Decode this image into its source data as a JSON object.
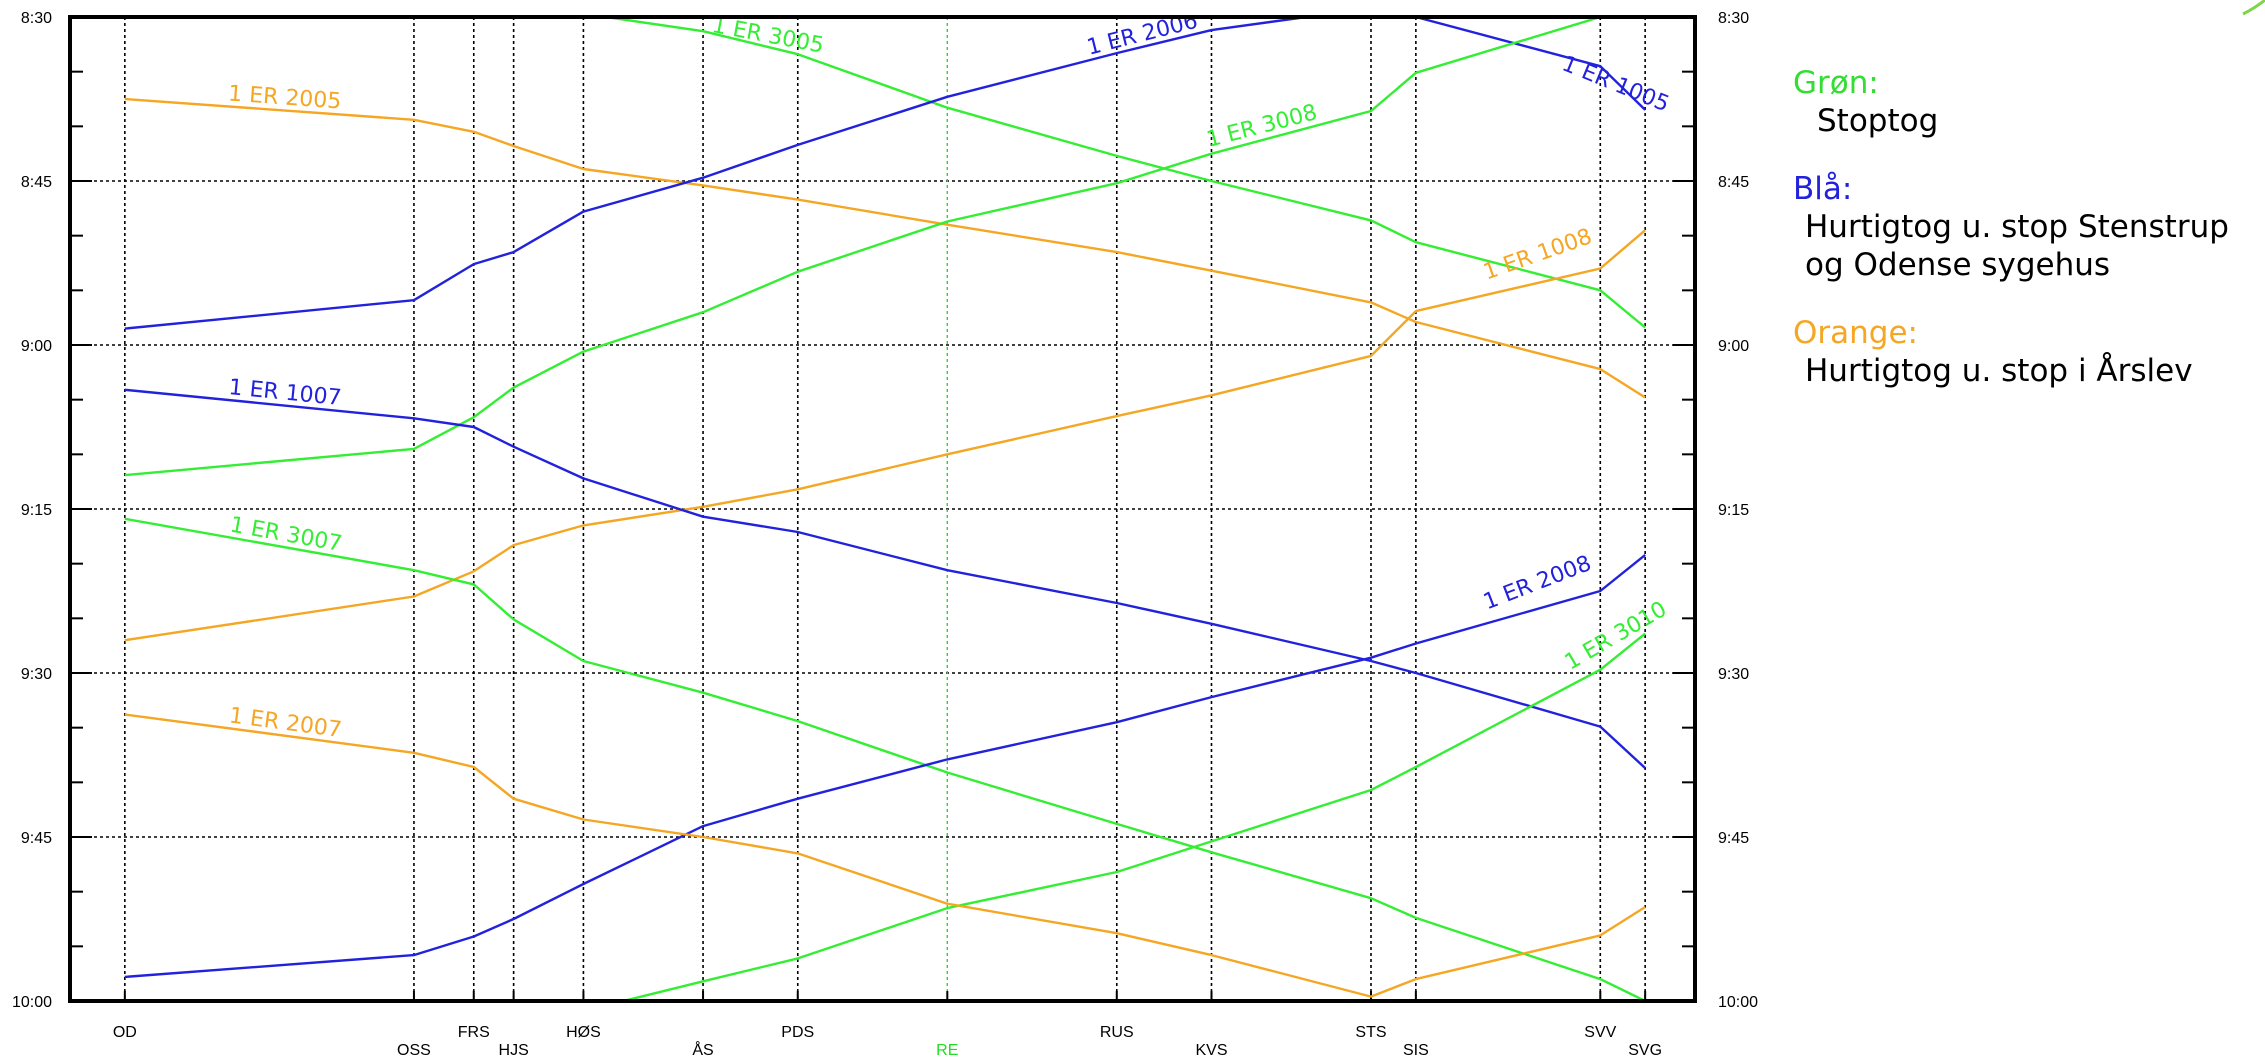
{
  "chart_data": {
    "type": "line",
    "title": "",
    "xlabel": "",
    "ylabel": "",
    "grid": true,
    "y_axis": {
      "range": [
        "8:30",
        "10:00"
      ],
      "ticks": [
        "8:30",
        "8:45",
        "9:00",
        "9:15",
        "9:30",
        "9:45",
        "10:00"
      ],
      "minor_step_minutes": 5
    },
    "stations": [
      {
        "code": "OD",
        "km": 0.0
      },
      {
        "code": "OSS",
        "km": 5.8
      },
      {
        "code": "FRS",
        "km": 7.0
      },
      {
        "code": "HJS",
        "km": 7.8
      },
      {
        "code": "HØS",
        "km": 9.2
      },
      {
        "code": "ÅS",
        "km": 11.6
      },
      {
        "code": "PDS",
        "km": 13.5
      },
      {
        "code": "RE",
        "km": 16.5
      },
      {
        "code": "RUS",
        "km": 19.9
      },
      {
        "code": "KVS",
        "km": 21.8
      },
      {
        "code": "STS",
        "km": 25.0
      },
      {
        "code": "SIS",
        "km": 25.9
      },
      {
        "code": "SVV",
        "km": 29.6
      },
      {
        "code": "SVG",
        "km": 30.5
      }
    ],
    "highlighted_station": "RE",
    "series": [
      {
        "name": "1 ER 2005",
        "color": "#f5a623",
        "points": [
          [
            0,
            "8:37.5"
          ],
          [
            5.8,
            "8:39.4"
          ],
          [
            7.0,
            "8:40.5"
          ],
          [
            7.8,
            "8:41.8"
          ],
          [
            9.2,
            "8:43.9"
          ],
          [
            11.6,
            "8:45.4"
          ],
          [
            13.5,
            "8:46.7"
          ],
          [
            16.5,
            "8:49.0"
          ],
          [
            19.9,
            "8:51.5"
          ],
          [
            21.8,
            "8:53.2"
          ],
          [
            25.0,
            "8:56.1"
          ],
          [
            25.9,
            "8:57.9"
          ],
          [
            29.6,
            "9:02.2"
          ],
          [
            30.5,
            "9:04.8"
          ]
        ]
      },
      {
        "name": "1 ER 3005",
        "color": "#33ee33",
        "points": [
          [
            9.2,
            "8:29.7"
          ],
          [
            11.6,
            "8:31.3"
          ],
          [
            13.5,
            "8:33.4"
          ],
          [
            16.5,
            "8:38.3"
          ],
          [
            19.9,
            "8:42.7"
          ],
          [
            21.8,
            "8:45.0"
          ],
          [
            25.0,
            "8:48.6"
          ],
          [
            25.9,
            "8:50.6"
          ],
          [
            29.6,
            "8:55.0"
          ],
          [
            30.5,
            "8:58.4"
          ]
        ]
      },
      {
        "name": "1 ER 2006",
        "color": "#2222dd",
        "points": [
          [
            0,
            "8:58.5"
          ],
          [
            5.8,
            "8:55.9"
          ],
          [
            7.0,
            "8:52.6"
          ],
          [
            7.8,
            "8:51.5"
          ],
          [
            9.2,
            "8:47.8"
          ],
          [
            11.6,
            "8:44.7"
          ],
          [
            13.5,
            "8:41.7"
          ],
          [
            16.5,
            "8:37.3"
          ],
          [
            19.9,
            "8:33.3"
          ],
          [
            21.8,
            "8:31.2"
          ],
          [
            23.7,
            "8:30.0"
          ]
        ]
      },
      {
        "name": "1 ER 1005",
        "color": "#2222dd",
        "points": [
          [
            25.9,
            "8:30.0"
          ],
          [
            29.6,
            "8:34.5"
          ],
          [
            30.5,
            "8:38.5"
          ]
        ]
      },
      {
        "name": "1 ER 3008",
        "color": "#33ee33",
        "points": [
          [
            0,
            "9:11.9"
          ],
          [
            5.8,
            "9:09.5"
          ],
          [
            7.0,
            "9:06.6"
          ],
          [
            7.8,
            "9:03.9"
          ],
          [
            9.2,
            "9:00.6"
          ],
          [
            11.6,
            "8:57.0"
          ],
          [
            13.5,
            "8:53.3"
          ],
          [
            16.5,
            "8:48.7"
          ],
          [
            19.9,
            "8:45.2"
          ],
          [
            21.8,
            "8:42.5"
          ],
          [
            25.0,
            "8:38.6"
          ],
          [
            25.9,
            "8:35.1"
          ],
          [
            29.6,
            "8:30.0"
          ]
        ]
      },
      {
        "name": "1 ER 1008",
        "color": "#f5a623",
        "points": [
          [
            0,
            "9:27.0"
          ],
          [
            5.8,
            "9:23.0"
          ],
          [
            7.0,
            "9:20.7"
          ],
          [
            7.8,
            "9:18.3"
          ],
          [
            9.2,
            "9:16.5"
          ],
          [
            11.6,
            "9:14.8"
          ],
          [
            13.5,
            "9:13.2"
          ],
          [
            16.5,
            "9:10.0"
          ],
          [
            19.9,
            "9:06.5"
          ],
          [
            21.8,
            "9:04.6"
          ],
          [
            25.0,
            "9:01.0"
          ],
          [
            25.9,
            "8:56.9"
          ],
          [
            29.6,
            "8:53.0"
          ],
          [
            30.5,
            "8:49.5"
          ]
        ]
      },
      {
        "name": "1 ER 1007",
        "color": "#2222dd",
        "points": [
          [
            0,
            "9:04.1"
          ],
          [
            5.8,
            "9:06.7"
          ],
          [
            7.0,
            "9:07.5"
          ],
          [
            7.8,
            "9:09.3"
          ],
          [
            9.2,
            "9:12.2"
          ],
          [
            11.6,
            "9:15.7"
          ],
          [
            13.5,
            "9:17.1"
          ],
          [
            16.5,
            "9:20.6"
          ],
          [
            19.9,
            "9:23.6"
          ],
          [
            21.8,
            "9:25.5"
          ],
          [
            25.0,
            "9:28.9"
          ],
          [
            25.9,
            "9:30.0"
          ],
          [
            29.6,
            "9:34.9"
          ],
          [
            30.5,
            "9:38.7"
          ]
        ]
      },
      {
        "name": "1 ER 3007",
        "color": "#33ee33",
        "points": [
          [
            0,
            "9:15.9"
          ],
          [
            5.8,
            "9:20.6"
          ],
          [
            7.0,
            "9:21.9"
          ],
          [
            7.8,
            "9:25.1"
          ],
          [
            9.2,
            "9:28.9"
          ],
          [
            11.6,
            "9:31.8"
          ],
          [
            13.5,
            "9:34.4"
          ],
          [
            16.5,
            "9:39.1"
          ],
          [
            19.9,
            "9:43.8"
          ],
          [
            21.8,
            "9:46.4"
          ],
          [
            25.0,
            "9:50.6"
          ],
          [
            25.9,
            "9:52.4"
          ],
          [
            29.6,
            "9:58.0"
          ],
          [
            30.5,
            "10:00.0"
          ]
        ]
      },
      {
        "name": "1 ER 2008",
        "color": "#2222dd",
        "points": [
          [
            0,
            "9:57.8"
          ],
          [
            5.8,
            "9:55.8"
          ],
          [
            7.0,
            "9:54.1"
          ],
          [
            7.8,
            "9:52.5"
          ],
          [
            9.2,
            "9:49.3"
          ],
          [
            11.6,
            "9:44.0"
          ],
          [
            13.5,
            "9:41.5"
          ],
          [
            16.5,
            "9:37.9"
          ],
          [
            19.9,
            "9:34.5"
          ],
          [
            21.8,
            "9:32.2"
          ],
          [
            25.0,
            "9:28.6"
          ],
          [
            25.9,
            "9:27.3"
          ],
          [
            29.6,
            "9:22.5"
          ],
          [
            30.5,
            "9:19.2"
          ]
        ]
      },
      {
        "name": "1 ER 3010",
        "color": "#33ee33",
        "points": [
          [
            10.0,
            "10:00.0"
          ],
          [
            11.6,
            "9:58.2"
          ],
          [
            13.5,
            "9:56.1"
          ],
          [
            16.5,
            "9:51.5"
          ],
          [
            19.9,
            "9:48.2"
          ],
          [
            21.8,
            "9:45.4"
          ],
          [
            25.0,
            "9:40.7"
          ],
          [
            25.9,
            "9:38.6"
          ],
          [
            29.6,
            "9:29.7"
          ],
          [
            30.5,
            "9:26.4"
          ]
        ]
      },
      {
        "name": "1 ER 2007",
        "color": "#f5a623",
        "points": [
          [
            0,
            "9:33.8"
          ],
          [
            5.8,
            "9:37.3"
          ],
          [
            7.0,
            "9:38.6"
          ],
          [
            7.8,
            "9:41.5"
          ],
          [
            9.2,
            "9:43.4"
          ],
          [
            11.6,
            "9:45.0"
          ],
          [
            13.5,
            "9:46.5"
          ],
          [
            16.5,
            "9:51.1"
          ],
          [
            19.9,
            "9:53.8"
          ],
          [
            21.8,
            "9:55.8"
          ],
          [
            25.0,
            "9:59.6"
          ],
          [
            25.9,
            "9:58.0"
          ],
          [
            29.6,
            "9:54.0"
          ],
          [
            30.5,
            "9:51.4"
          ]
        ]
      }
    ]
  },
  "legend": [
    {
      "title": "Grøn:",
      "color": "#33dd33",
      "desc": [
        "Stoptog"
      ]
    },
    {
      "title": "Blå:",
      "color": "#2222dd",
      "desc": [
        "Hurtigtog u. stop Stenstrup",
        "og Odense sygehus"
      ]
    },
    {
      "title": "Orange:",
      "color": "#f5a623",
      "desc": [
        "Hurtigtog u. stop i Årslev"
      ]
    }
  ]
}
